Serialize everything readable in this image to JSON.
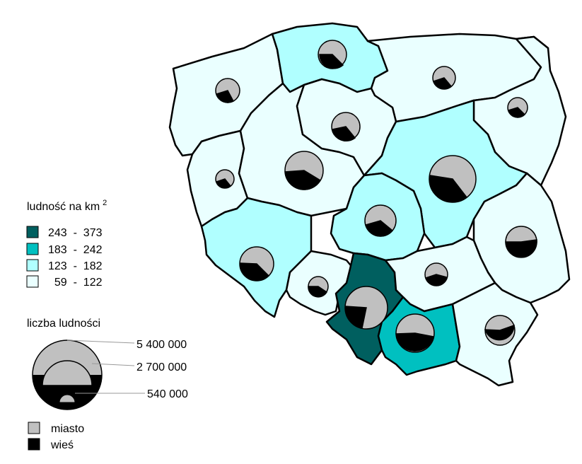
{
  "density_legend": {
    "title": "ludność na km",
    "title_superscript": "2",
    "classes": [
      {
        "label": "243  -  373",
        "color": "#005f5f"
      },
      {
        "label": "183  -  242",
        "color": "#00c0c0"
      },
      {
        "label": "123  -  182",
        "color": "#b0ffff"
      },
      {
        "label": "  59  -  122",
        "color": "#eaffff"
      }
    ]
  },
  "population_legend": {
    "title": "liczba ludności",
    "values": [
      "5 400 000",
      "2 700 000",
      "540 000"
    ]
  },
  "share_legend": {
    "items": [
      {
        "label": "miasto",
        "color": "#c0c0c0"
      },
      {
        "label": "wieś",
        "color": "#000000"
      }
    ]
  },
  "colors": {
    "urban": "#c0c0c0",
    "rural": "#000000",
    "border": "#000000"
  }
}
